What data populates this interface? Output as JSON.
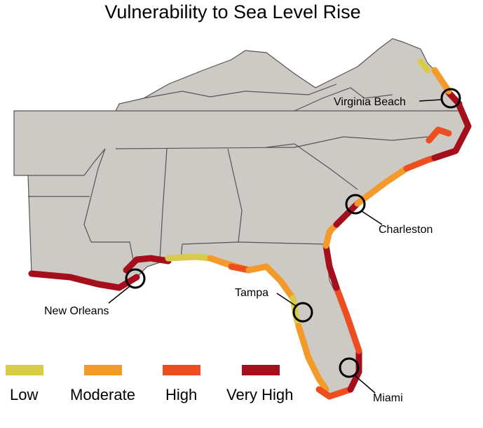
{
  "title": "Vulnerability to Sea Level Rise",
  "legend": [
    {
      "label": "Low",
      "color": "#d8cb4c"
    },
    {
      "label": "Moderate",
      "color": "#f39a2a"
    },
    {
      "label": "High",
      "color": "#ec4e1f"
    },
    {
      "label": "Very High",
      "color": "#a50f1c"
    }
  ],
  "cities": [
    {
      "label": "Virginia Beach"
    },
    {
      "label": "Charleston"
    },
    {
      "label": "New Orleans"
    },
    {
      "label": "Tampa"
    },
    {
      "label": "Miami"
    }
  ]
}
